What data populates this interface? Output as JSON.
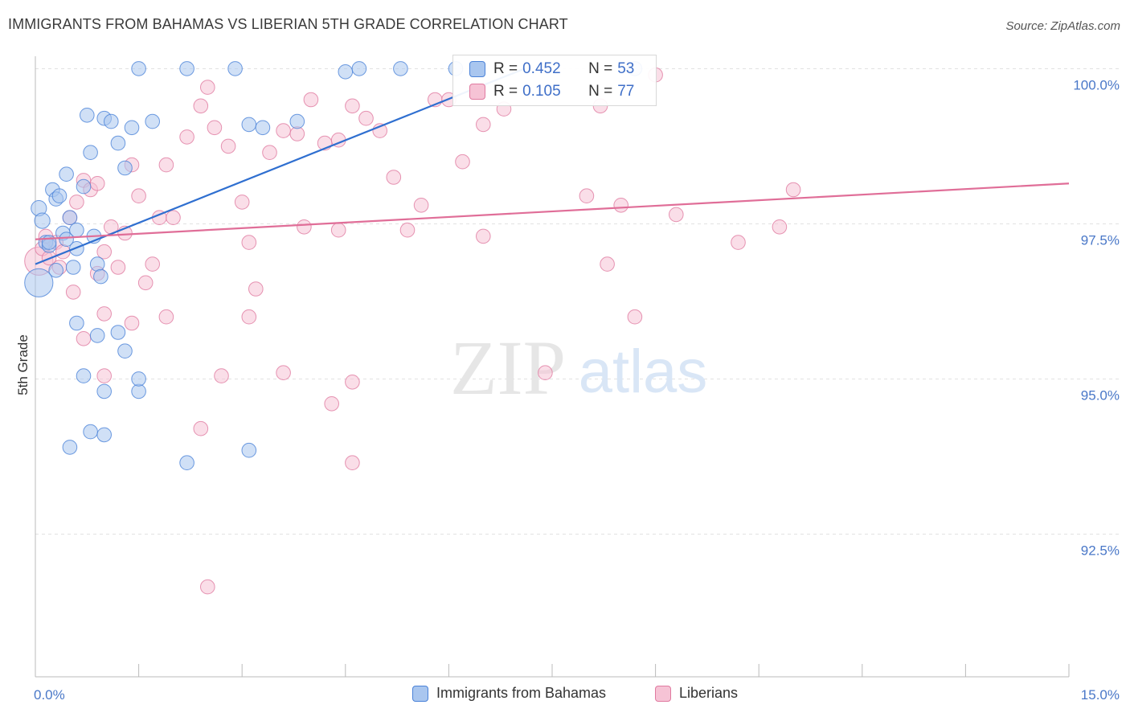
{
  "header": {
    "title": "IMMIGRANTS FROM BAHAMAS VS LIBERIAN 5TH GRADE CORRELATION CHART",
    "source": "Source: ZipAtlas.com"
  },
  "watermark": {
    "zip": "ZIP",
    "atlas": "atlas"
  },
  "legend": {
    "rows": [
      {
        "r_label": "R =",
        "r_value": "0.452",
        "n_label": "N =",
        "n_value": "53"
      },
      {
        "r_label": "R =",
        "r_value": "0.105",
        "n_label": "N =",
        "n_value": "77"
      }
    ]
  },
  "chart_data": {
    "type": "scatter",
    "title": "IMMIGRANTS FROM BAHAMAS VS LIBERIAN 5TH GRADE CORRELATION CHART",
    "xlabel": "",
    "ylabel": "5th Grade",
    "xlim": [
      0,
      15
    ],
    "ylim": [
      90.2,
      100.2
    ],
    "x_tick_labels": [
      "0.0%",
      "15.0%"
    ],
    "y_ticks": [
      92.5,
      95.0,
      97.5,
      100.0
    ],
    "y_tick_labels": [
      "92.5%",
      "95.0%",
      "97.5%",
      "100.0%"
    ],
    "grid": true,
    "legend_position": "top-center",
    "series": [
      {
        "name": "Immigrants from Bahamas",
        "color": "#4a82d8",
        "fill": "#a9c6ef",
        "trend": {
          "x": [
            0.0,
            7.1
          ],
          "y": [
            96.85,
            100.0
          ]
        },
        "points": [
          [
            0.05,
            97.75
          ],
          [
            0.05,
            96.55
          ],
          [
            0.1,
            97.55
          ],
          [
            0.15,
            97.2
          ],
          [
            0.2,
            97.15
          ],
          [
            0.25,
            98.05
          ],
          [
            0.3,
            97.9
          ],
          [
            0.35,
            97.95
          ],
          [
            0.4,
            97.35
          ],
          [
            0.45,
            98.3
          ],
          [
            0.5,
            97.6
          ],
          [
            0.55,
            96.8
          ],
          [
            0.6,
            97.1
          ],
          [
            0.7,
            98.1
          ],
          [
            0.75,
            99.25
          ],
          [
            0.8,
            98.65
          ],
          [
            0.85,
            97.3
          ],
          [
            0.9,
            96.85
          ],
          [
            1.0,
            99.2
          ],
          [
            1.1,
            99.15
          ],
          [
            1.2,
            98.8
          ],
          [
            1.3,
            98.4
          ],
          [
            1.4,
            99.05
          ],
          [
            1.5,
            100.0
          ],
          [
            1.7,
            99.15
          ],
          [
            2.2,
            100.0
          ],
          [
            2.9,
            100.0
          ],
          [
            3.1,
            99.1
          ],
          [
            3.3,
            99.05
          ],
          [
            3.8,
            99.15
          ],
          [
            4.5,
            99.95
          ],
          [
            4.7,
            100.0
          ],
          [
            5.3,
            100.0
          ],
          [
            6.1,
            100.0
          ],
          [
            0.6,
            95.9
          ],
          [
            0.9,
            95.7
          ],
          [
            1.2,
            95.75
          ],
          [
            0.7,
            95.05
          ],
          [
            1.0,
            94.8
          ],
          [
            1.5,
            94.8
          ],
          [
            0.8,
            94.15
          ],
          [
            1.0,
            94.1
          ],
          [
            0.5,
            93.9
          ],
          [
            2.2,
            93.65
          ],
          [
            3.1,
            93.85
          ],
          [
            1.5,
            95.0
          ],
          [
            0.95,
            96.65
          ],
          [
            8.7,
            100.0
          ],
          [
            0.6,
            97.4
          ],
          [
            0.3,
            96.75
          ],
          [
            1.3,
            95.45
          ],
          [
            0.45,
            97.25
          ],
          [
            0.2,
            97.2
          ]
        ],
        "sizes": [
          12,
          22,
          12,
          11,
          11,
          11,
          11,
          11,
          11,
          11,
          11,
          11,
          11,
          11,
          11,
          11,
          11,
          11,
          11,
          11,
          11,
          11,
          11,
          11,
          11,
          11,
          11,
          11,
          11,
          11,
          11,
          11,
          11,
          11,
          11,
          11,
          11,
          11,
          11,
          11,
          11,
          11,
          11,
          11,
          11,
          11,
          11,
          11,
          11,
          11,
          11,
          11,
          11
        ]
      },
      {
        "name": "Liberians",
        "color": "#e07aa0",
        "fill": "#f6c3d5",
        "trend": {
          "x": [
            0.0,
            15.0
          ],
          "y": [
            97.25,
            98.15
          ]
        },
        "points": [
          [
            0.05,
            96.9
          ],
          [
            0.1,
            97.1
          ],
          [
            0.15,
            97.3
          ],
          [
            0.2,
            96.95
          ],
          [
            0.3,
            97.2
          ],
          [
            0.35,
            96.8
          ],
          [
            0.4,
            97.05
          ],
          [
            0.5,
            97.6
          ],
          [
            0.55,
            96.4
          ],
          [
            0.6,
            97.85
          ],
          [
            0.7,
            98.2
          ],
          [
            0.8,
            98.05
          ],
          [
            0.9,
            98.15
          ],
          [
            1.0,
            97.05
          ],
          [
            1.1,
            97.45
          ],
          [
            1.2,
            96.8
          ],
          [
            1.3,
            97.35
          ],
          [
            1.4,
            98.45
          ],
          [
            1.5,
            97.95
          ],
          [
            1.6,
            96.55
          ],
          [
            1.7,
            96.85
          ],
          [
            1.8,
            97.6
          ],
          [
            1.9,
            98.45
          ],
          [
            2.0,
            97.6
          ],
          [
            2.2,
            98.9
          ],
          [
            2.4,
            99.4
          ],
          [
            2.5,
            99.7
          ],
          [
            2.6,
            99.05
          ],
          [
            2.8,
            98.75
          ],
          [
            3.0,
            97.85
          ],
          [
            3.2,
            96.45
          ],
          [
            3.4,
            98.65
          ],
          [
            3.6,
            99.0
          ],
          [
            3.8,
            98.95
          ],
          [
            4.0,
            99.5
          ],
          [
            4.2,
            98.8
          ],
          [
            4.4,
            98.85
          ],
          [
            4.6,
            99.4
          ],
          [
            4.8,
            99.2
          ],
          [
            5.0,
            99.0
          ],
          [
            5.2,
            98.25
          ],
          [
            5.4,
            97.4
          ],
          [
            5.6,
            97.8
          ],
          [
            5.8,
            99.5
          ],
          [
            6.0,
            99.5
          ],
          [
            6.2,
            98.5
          ],
          [
            6.5,
            97.3
          ],
          [
            6.8,
            99.35
          ],
          [
            1.0,
            96.05
          ],
          [
            1.4,
            95.9
          ],
          [
            1.9,
            96.0
          ],
          [
            2.7,
            95.05
          ],
          [
            3.1,
            96.0
          ],
          [
            3.6,
            95.1
          ],
          [
            4.3,
            94.6
          ],
          [
            4.6,
            94.95
          ],
          [
            1.0,
            95.05
          ],
          [
            2.4,
            94.2
          ],
          [
            4.6,
            93.65
          ],
          [
            2.5,
            91.65
          ],
          [
            7.4,
            95.1
          ],
          [
            8.0,
            97.95
          ],
          [
            8.3,
            96.85
          ],
          [
            8.5,
            97.8
          ],
          [
            8.7,
            96.0
          ],
          [
            9.3,
            97.65
          ],
          [
            10.2,
            97.2
          ],
          [
            10.8,
            97.45
          ],
          [
            11.0,
            98.05
          ],
          [
            0.7,
            95.65
          ],
          [
            0.9,
            96.7
          ],
          [
            3.1,
            97.2
          ],
          [
            3.9,
            97.45
          ],
          [
            4.4,
            97.4
          ],
          [
            6.5,
            99.1
          ],
          [
            8.2,
            99.4
          ],
          [
            9.0,
            99.9
          ]
        ],
        "sizes": [
          22,
          11,
          11,
          11,
          11,
          11,
          11,
          11,
          11,
          11,
          11,
          11,
          11,
          11,
          11,
          11,
          11,
          11,
          11,
          11,
          11,
          11,
          11,
          11,
          11,
          11,
          11,
          11,
          11,
          11,
          11,
          11,
          11,
          11,
          11,
          11,
          11,
          11,
          11,
          11,
          11,
          11,
          11,
          11,
          11,
          11,
          11,
          11,
          11,
          11,
          11,
          11,
          11,
          11,
          11,
          11,
          11,
          11,
          11,
          11,
          11,
          11,
          11,
          11,
          11,
          11,
          11,
          11,
          11,
          11,
          11,
          11,
          11,
          11,
          11,
          11,
          11
        ]
      }
    ]
  },
  "bottom_legend": {
    "items": [
      {
        "label": "Immigrants from Bahamas",
        "color": "#a9c6ef",
        "border": "#4a82d8"
      },
      {
        "label": "Liberians",
        "color": "#f6c3d5",
        "border": "#e07aa0"
      }
    ]
  }
}
